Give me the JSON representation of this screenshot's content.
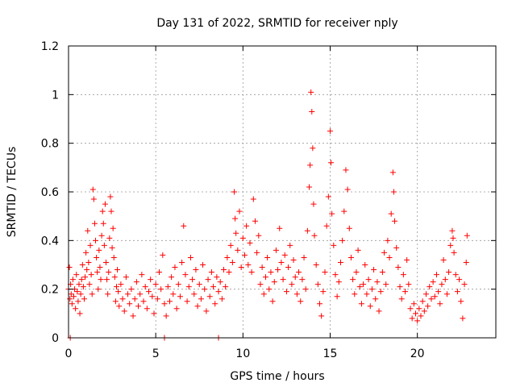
{
  "chart_data": {
    "type": "scatter",
    "title": "Day 131 of 2022, SRMTID for receiver nply",
    "xlabel": "GPS time / hours",
    "ylabel": "SRMTID / TECUs",
    "xlim": [
      0,
      24.5
    ],
    "ylim": [
      0,
      1.2
    ],
    "x_ticks": [
      0,
      5,
      10,
      15,
      20
    ],
    "y_ticks": [
      0,
      0.2,
      0.4,
      0.6,
      0.8,
      1,
      1.2
    ],
    "x_tick_labels": [
      "0",
      "5",
      "10",
      "15",
      "20"
    ],
    "y_tick_labels": [
      "0",
      "0.2",
      "0.4",
      "0.6",
      "0.8",
      "1",
      "1.2"
    ],
    "grid": true,
    "marker": "plus",
    "color": "#ff0000",
    "series": [
      {
        "name": "SRMTID",
        "points": [
          [
            0.0,
            0.2
          ],
          [
            0.05,
            0.29
          ],
          [
            0.08,
            0.16
          ],
          [
            0.12,
            0.22
          ],
          [
            0.15,
            0.18
          ],
          [
            0.2,
            0.14
          ],
          [
            0.25,
            0.24
          ],
          [
            0.3,
            0.17
          ],
          [
            0.35,
            0.2
          ],
          [
            0.4,
            0.12
          ],
          [
            0.45,
            0.26
          ],
          [
            0.5,
            0.19
          ],
          [
            0.55,
            0.15
          ],
          [
            0.6,
            0.22
          ],
          [
            0.65,
            0.1
          ],
          [
            0.7,
            0.18
          ],
          [
            0.75,
            0.24
          ],
          [
            0.8,
            0.3
          ],
          [
            0.85,
            0.21
          ],
          [
            0.9,
            0.16
          ],
          [
            0.95,
            0.25
          ],
          [
            1.0,
            0.35
          ],
          [
            1.05,
            0.28
          ],
          [
            1.1,
            0.44
          ],
          [
            1.15,
            0.31
          ],
          [
            1.2,
            0.22
          ],
          [
            1.25,
            0.38
          ],
          [
            1.3,
            0.26
          ],
          [
            1.35,
            0.18
          ],
          [
            1.4,
            0.61
          ],
          [
            1.45,
            0.57
          ],
          [
            1.5,
            0.47
          ],
          [
            1.55,
            0.4
          ],
          [
            1.6,
            0.33
          ],
          [
            1.65,
            0.27
          ],
          [
            1.7,
            0.2
          ],
          [
            1.75,
            0.36
          ],
          [
            1.8,
            0.29
          ],
          [
            1.85,
            0.24
          ],
          [
            1.9,
            0.42
          ],
          [
            1.95,
            0.52
          ],
          [
            2.0,
            0.47
          ],
          [
            2.05,
            0.38
          ],
          [
            2.1,
            0.55
          ],
          [
            2.15,
            0.31
          ],
          [
            2.2,
            0.24
          ],
          [
            2.25,
            0.18
          ],
          [
            2.3,
            0.27
          ],
          [
            2.35,
            0.41
          ],
          [
            2.4,
            0.58
          ],
          [
            2.45,
            0.52
          ],
          [
            2.5,
            0.37
          ],
          [
            2.55,
            0.45
          ],
          [
            2.6,
            0.33
          ],
          [
            2.65,
            0.25
          ],
          [
            2.7,
            0.15
          ],
          [
            2.75,
            0.21
          ],
          [
            2.8,
            0.28
          ],
          [
            2.85,
            0.19
          ],
          [
            2.9,
            0.13
          ],
          [
            3.0,
            0.22
          ],
          [
            3.1,
            0.16
          ],
          [
            3.2,
            0.11
          ],
          [
            3.3,
            0.25
          ],
          [
            3.4,
            0.18
          ],
          [
            3.5,
            0.14
          ],
          [
            3.6,
            0.2
          ],
          [
            3.7,
            0.09
          ],
          [
            3.8,
            0.16
          ],
          [
            3.9,
            0.23
          ],
          [
            4.0,
            0.13
          ],
          [
            4.1,
            0.18
          ],
          [
            4.2,
            0.26
          ],
          [
            4.3,
            0.15
          ],
          [
            4.4,
            0.21
          ],
          [
            4.5,
            0.12
          ],
          [
            4.6,
            0.19
          ],
          [
            4.7,
            0.24
          ],
          [
            4.8,
            0.17
          ],
          [
            4.9,
            0.1
          ],
          [
            5.0,
            0.22
          ],
          [
            5.1,
            0.16
          ],
          [
            5.2,
            0.27
          ],
          [
            5.3,
            0.2
          ],
          [
            5.4,
            0.34
          ],
          [
            5.5,
            0.14
          ],
          [
            5.6,
            0.09
          ],
          [
            5.7,
            0.21
          ],
          [
            5.8,
            0.15
          ],
          [
            5.9,
            0.25
          ],
          [
            6.0,
            0.18
          ],
          [
            6.1,
            0.29
          ],
          [
            6.2,
            0.12
          ],
          [
            6.3,
            0.22
          ],
          [
            6.4,
            0.17
          ],
          [
            6.5,
            0.31
          ],
          [
            6.6,
            0.46
          ],
          [
            6.7,
            0.26
          ],
          [
            6.8,
            0.15
          ],
          [
            6.9,
            0.21
          ],
          [
            7.0,
            0.33
          ],
          [
            7.1,
            0.24
          ],
          [
            7.2,
            0.18
          ],
          [
            7.3,
            0.28
          ],
          [
            7.4,
            0.13
          ],
          [
            7.5,
            0.22
          ],
          [
            7.6,
            0.16
          ],
          [
            7.7,
            0.3
          ],
          [
            7.8,
            0.2
          ],
          [
            7.9,
            0.11
          ],
          [
            8.0,
            0.24
          ],
          [
            8.1,
            0.17
          ],
          [
            8.2,
            0.27
          ],
          [
            8.3,
            0.21
          ],
          [
            8.4,
            0.14
          ],
          [
            8.5,
            0.25
          ],
          [
            8.6,
            0.19
          ],
          [
            8.7,
            0.23
          ],
          [
            8.8,
            0.16
          ],
          [
            8.9,
            0.28
          ],
          [
            9.0,
            0.21
          ],
          [
            9.1,
            0.33
          ],
          [
            9.2,
            0.27
          ],
          [
            9.3,
            0.38
          ],
          [
            9.4,
            0.31
          ],
          [
            9.5,
            0.6
          ],
          [
            9.55,
            0.49
          ],
          [
            9.6,
            0.43
          ],
          [
            9.7,
            0.36
          ],
          [
            9.8,
            0.52
          ],
          [
            9.9,
            0.29
          ],
          [
            10.0,
            0.41
          ],
          [
            10.1,
            0.34
          ],
          [
            10.2,
            0.46
          ],
          [
            10.3,
            0.3
          ],
          [
            10.4,
            0.39
          ],
          [
            10.5,
            0.27
          ],
          [
            10.6,
            0.57
          ],
          [
            10.7,
            0.48
          ],
          [
            10.8,
            0.35
          ],
          [
            10.9,
            0.42
          ],
          [
            11.0,
            0.22
          ],
          [
            11.1,
            0.29
          ],
          [
            11.2,
            0.18
          ],
          [
            11.3,
            0.25
          ],
          [
            11.4,
            0.33
          ],
          [
            11.5,
            0.2
          ],
          [
            11.6,
            0.27
          ],
          [
            11.7,
            0.15
          ],
          [
            11.8,
            0.23
          ],
          [
            11.9,
            0.36
          ],
          [
            12.0,
            0.28
          ],
          [
            12.1,
            0.45
          ],
          [
            12.2,
            0.31
          ],
          [
            12.3,
            0.24
          ],
          [
            12.4,
            0.34
          ],
          [
            12.5,
            0.19
          ],
          [
            12.6,
            0.29
          ],
          [
            12.7,
            0.38
          ],
          [
            12.8,
            0.22
          ],
          [
            12.9,
            0.32
          ],
          [
            13.0,
            0.25
          ],
          [
            13.1,
            0.18
          ],
          [
            13.2,
            0.27
          ],
          [
            13.3,
            0.15
          ],
          [
            13.4,
            0.24
          ],
          [
            13.5,
            0.33
          ],
          [
            13.6,
            0.2
          ],
          [
            13.7,
            0.44
          ],
          [
            13.8,
            0.62
          ],
          [
            13.85,
            0.71
          ],
          [
            13.9,
            1.01
          ],
          [
            13.95,
            0.93
          ],
          [
            14.0,
            0.78
          ],
          [
            14.05,
            0.55
          ],
          [
            14.1,
            0.42
          ],
          [
            14.2,
            0.3
          ],
          [
            14.3,
            0.22
          ],
          [
            14.4,
            0.14
          ],
          [
            14.5,
            0.09
          ],
          [
            14.6,
            0.19
          ],
          [
            14.7,
            0.27
          ],
          [
            14.8,
            0.46
          ],
          [
            14.9,
            0.58
          ],
          [
            15.0,
            0.85
          ],
          [
            15.05,
            0.72
          ],
          [
            15.1,
            0.51
          ],
          [
            15.2,
            0.38
          ],
          [
            15.3,
            0.26
          ],
          [
            15.4,
            0.17
          ],
          [
            15.5,
            0.23
          ],
          [
            15.6,
            0.31
          ],
          [
            15.7,
            0.4
          ],
          [
            15.8,
            0.52
          ],
          [
            15.9,
            0.69
          ],
          [
            16.0,
            0.61
          ],
          [
            16.1,
            0.45
          ],
          [
            16.2,
            0.33
          ],
          [
            16.3,
            0.24
          ],
          [
            16.4,
            0.18
          ],
          [
            16.5,
            0.27
          ],
          [
            16.6,
            0.36
          ],
          [
            16.7,
            0.21
          ],
          [
            16.8,
            0.14
          ],
          [
            16.9,
            0.22
          ],
          [
            17.0,
            0.3
          ],
          [
            17.1,
            0.18
          ],
          [
            17.2,
            0.24
          ],
          [
            17.3,
            0.13
          ],
          [
            17.4,
            0.2
          ],
          [
            17.5,
            0.28
          ],
          [
            17.6,
            0.16
          ],
          [
            17.7,
            0.23
          ],
          [
            17.8,
            0.11
          ],
          [
            17.9,
            0.19
          ],
          [
            18.0,
            0.27
          ],
          [
            18.1,
            0.35
          ],
          [
            18.2,
            0.22
          ],
          [
            18.3,
            0.4
          ],
          [
            18.4,
            0.33
          ],
          [
            18.5,
            0.51
          ],
          [
            18.6,
            0.68
          ],
          [
            18.65,
            0.6
          ],
          [
            18.7,
            0.48
          ],
          [
            18.8,
            0.37
          ],
          [
            18.9,
            0.29
          ],
          [
            19.0,
            0.21
          ],
          [
            19.1,
            0.16
          ],
          [
            19.2,
            0.26
          ],
          [
            19.3,
            0.19
          ],
          [
            19.4,
            0.32
          ],
          [
            19.5,
            0.22
          ],
          [
            19.6,
            0.12
          ],
          [
            19.7,
            0.08
          ],
          [
            19.8,
            0.14
          ],
          [
            19.9,
            0.1
          ],
          [
            20.0,
            0.07
          ],
          [
            20.1,
            0.12
          ],
          [
            20.2,
            0.09
          ],
          [
            20.3,
            0.15
          ],
          [
            20.4,
            0.11
          ],
          [
            20.5,
            0.18
          ],
          [
            20.6,
            0.13
          ],
          [
            20.7,
            0.21
          ],
          [
            20.8,
            0.16
          ],
          [
            20.9,
            0.23
          ],
          [
            21.0,
            0.17
          ],
          [
            21.1,
            0.26
          ],
          [
            21.2,
            0.19
          ],
          [
            21.3,
            0.14
          ],
          [
            21.4,
            0.22
          ],
          [
            21.5,
            0.32
          ],
          [
            21.6,
            0.24
          ],
          [
            21.7,
            0.18
          ],
          [
            21.8,
            0.27
          ],
          [
            21.9,
            0.38
          ],
          [
            22.0,
            0.44
          ],
          [
            22.05,
            0.41
          ],
          [
            22.1,
            0.35
          ],
          [
            22.2,
            0.26
          ],
          [
            22.3,
            0.19
          ],
          [
            22.4,
            0.24
          ],
          [
            22.5,
            0.15
          ],
          [
            22.6,
            0.08
          ],
          [
            22.7,
            0.22
          ],
          [
            22.8,
            0.31
          ],
          [
            22.85,
            0.42
          ],
          [
            0.1,
            0.0
          ],
          [
            5.5,
            0.0
          ],
          [
            8.6,
            0.0
          ]
        ]
      }
    ]
  }
}
